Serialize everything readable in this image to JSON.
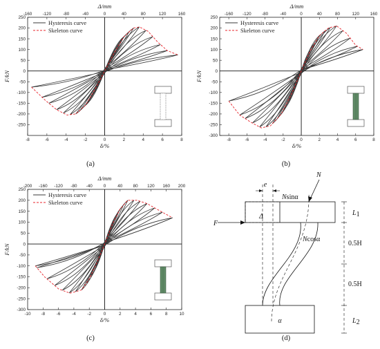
{
  "chart_data": [
    {
      "type": "line",
      "panel_label": "(a)",
      "top_axis_label": "Δ/mm",
      "xlabel": "δ/%",
      "ylabel": "F/kN",
      "xlim": [
        -8,
        8
      ],
      "ylim": [
        -300,
        250
      ],
      "x_ticks": [
        -8,
        -6,
        -4,
        -2,
        0,
        2,
        4,
        6,
        8
      ],
      "y_ticks": [
        -250,
        -200,
        -150,
        -100,
        -50,
        0,
        50,
        100,
        150,
        200,
        250
      ],
      "top_ticks": [
        -160,
        -120,
        -80,
        -40,
        0,
        40,
        80,
        120,
        160
      ],
      "legend": [
        "Hysteresis curve",
        "Skeleton curve"
      ],
      "legend_position": "top-left",
      "skeleton": {
        "name": "Skeleton curve",
        "x": [
          -7.6,
          -6.2,
          -5.0,
          -3.9,
          -3.0,
          -2.0,
          -1.0,
          0,
          1.0,
          2.0,
          3.0,
          3.6,
          4.5,
          5.5,
          6.5,
          7.6
        ],
        "y": [
          -75,
          -135,
          -180,
          -205,
          -200,
          -160,
          -85,
          0,
          85,
          160,
          200,
          205,
          185,
          135,
          95,
          75
        ]
      },
      "hysteresis_amplitudes": [
        0.5,
        1.0,
        1.5,
        2.0,
        2.5,
        3.0,
        3.6,
        4.3,
        5.0,
        5.8,
        6.5,
        7.6
      ]
    },
    {
      "type": "line",
      "panel_label": "(b)",
      "top_axis_label": "Δ/mm",
      "xlabel": "δ/%",
      "ylabel": "F/kN",
      "xlim": [
        -9,
        8
      ],
      "ylim": [
        -300,
        250
      ],
      "x_ticks": [
        -8,
        -6,
        -4,
        -2,
        0,
        2,
        4,
        6,
        8
      ],
      "y_ticks": [
        -300,
        -250,
        -200,
        -150,
        -100,
        -50,
        0,
        50,
        100,
        150,
        200,
        250
      ],
      "top_ticks": [
        -160,
        -120,
        -80,
        -40,
        0,
        40,
        80,
        120,
        160
      ],
      "legend": [
        "Hysteresis curve",
        "Skeleton curve"
      ],
      "legend_position": "top-left",
      "skeleton": {
        "name": "Skeleton curve",
        "x": [
          -8.0,
          -6.8,
          -5.5,
          -4.4,
          -3.4,
          -2.2,
          -1.0,
          0,
          1.0,
          2.0,
          3.0,
          3.9,
          5.0,
          6.0,
          6.8
        ],
        "y": [
          -140,
          -205,
          -240,
          -265,
          -255,
          -200,
          -100,
          0,
          95,
          165,
          200,
          210,
          175,
          120,
          100
        ]
      },
      "hysteresis_amplitudes": [
        0.5,
        1.0,
        1.5,
        2.0,
        2.6,
        3.2,
        3.9,
        4.6,
        5.4,
        6.2,
        6.8,
        8.0
      ]
    },
    {
      "type": "line",
      "panel_label": "(c)",
      "top_axis_label": "Δ/mm",
      "xlabel": "δ/%",
      "ylabel": "F/kN",
      "xlim": [
        -10,
        10
      ],
      "ylim": [
        -300,
        250
      ],
      "x_ticks": [
        -10,
        -8,
        -6,
        -4,
        -2,
        0,
        2,
        4,
        6,
        8,
        10
      ],
      "y_ticks": [
        -300,
        -250,
        -200,
        -150,
        -100,
        -50,
        0,
        50,
        100,
        150,
        200,
        250
      ],
      "top_ticks": [
        -200,
        -160,
        -120,
        -80,
        -40,
        0,
        40,
        80,
        120,
        160,
        200
      ],
      "legend": [
        "Hysteresis curve",
        "Skeleton curve"
      ],
      "legend_position": "top-left",
      "skeleton": {
        "name": "Skeleton curve",
        "x": [
          -9.0,
          -7.8,
          -6.0,
          -4.5,
          -3.0,
          -2.0,
          -1.0,
          0,
          1.0,
          2.0,
          3.0,
          4.2,
          5.5,
          7.0,
          8.8
        ],
        "y": [
          -100,
          -150,
          -205,
          -225,
          -210,
          -160,
          -85,
          0,
          90,
          160,
          200,
          200,
          185,
          155,
          120
        ]
      },
      "hysteresis_amplitudes": [
        0.6,
        1.2,
        1.8,
        2.4,
        3.0,
        3.8,
        4.6,
        5.5,
        6.5,
        7.5,
        8.8,
        9.0
      ]
    }
  ],
  "diagram": {
    "panel_label": "(d)",
    "labels": {
      "e": "e",
      "N": "N",
      "nsin_prefix": "N",
      "nsin_suffix": "sinα",
      "ncos_prefix": "N",
      "ncos_suffix": "cosα",
      "F": "F",
      "delta": "Δ",
      "alpha": "α",
      "L1": "L",
      "L1_sub": "1",
      "L2": "L",
      "L2_sub": "2",
      "half_h_top": "0.5H",
      "half_h_bottom": "0.5H"
    }
  },
  "colors": {
    "hysteresis": "#3a3a3a",
    "skeleton": "#e8242b",
    "steel_tube": "#5f8a66"
  }
}
